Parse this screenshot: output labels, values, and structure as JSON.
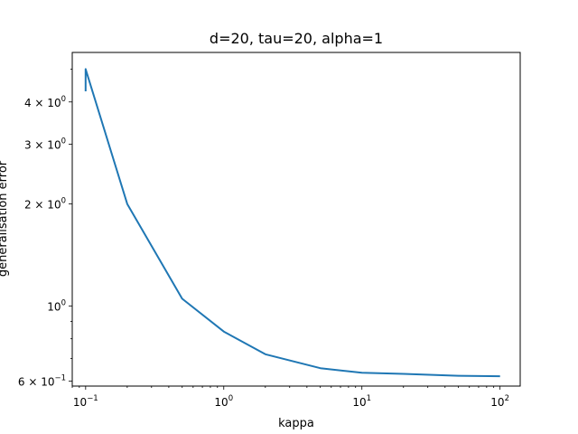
{
  "chart_data": {
    "type": "line",
    "title": "d=20, tau=20, alpha=1",
    "xlabel": "kappa",
    "ylabel": "generalisation error",
    "xscale": "log",
    "yscale": "log",
    "xlim": [
      0.08,
      140
    ],
    "ylim": [
      0.58,
      5.6
    ],
    "grid": false,
    "legend": "none",
    "x_ticks": [
      {
        "value": 0.1,
        "base": "10",
        "exp": "−1"
      },
      {
        "value": 1,
        "base": "10",
        "exp": "0"
      },
      {
        "value": 10,
        "base": "10",
        "exp": "1"
      },
      {
        "value": 100,
        "base": "10",
        "exp": "2"
      }
    ],
    "y_ticks": [
      {
        "value": 0.6,
        "mant": "6 × 10",
        "exp": "−1"
      },
      {
        "value": 1,
        "mant": "10",
        "exp": "0"
      },
      {
        "value": 2,
        "mant": "2 × 10",
        "exp": "0"
      },
      {
        "value": 3,
        "mant": "3 × 10",
        "exp": "0"
      },
      {
        "value": 4,
        "mant": "4 × 10",
        "exp": "0"
      }
    ],
    "y_minor_ticks": [
      0.7,
      0.8,
      0.9,
      5
    ],
    "series": [
      {
        "color": "#1f77b4",
        "x": [
          0.1,
          0.1,
          0.2,
          0.5,
          1,
          2,
          5,
          10,
          20,
          50,
          100
        ],
        "y": [
          4.3,
          5.0,
          2.0,
          1.05,
          0.84,
          0.72,
          0.655,
          0.635,
          0.63,
          0.622,
          0.62
        ]
      }
    ]
  }
}
